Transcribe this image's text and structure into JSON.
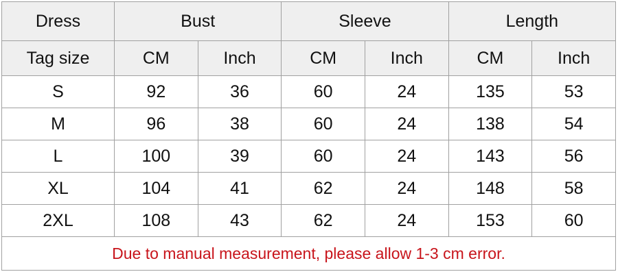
{
  "header": {
    "corner": "Dress",
    "groups": [
      "Bust",
      "Sleeve",
      "Length"
    ],
    "sub_corner": "Tag size",
    "units": [
      "CM",
      "Inch",
      "CM",
      "Inch",
      "CM",
      "Inch"
    ]
  },
  "table": {
    "rows": [
      [
        "S",
        92,
        36,
        60,
        24,
        135,
        53
      ],
      [
        "M",
        96,
        38,
        60,
        24,
        138,
        54
      ],
      [
        "L",
        100,
        39,
        60,
        24,
        143,
        56
      ],
      [
        "XL",
        104,
        41,
        62,
        24,
        148,
        58
      ],
      [
        "2XL",
        108,
        43,
        62,
        24,
        153,
        60
      ]
    ]
  },
  "note": "Due to manual measurement, please allow 1-3 cm error."
}
